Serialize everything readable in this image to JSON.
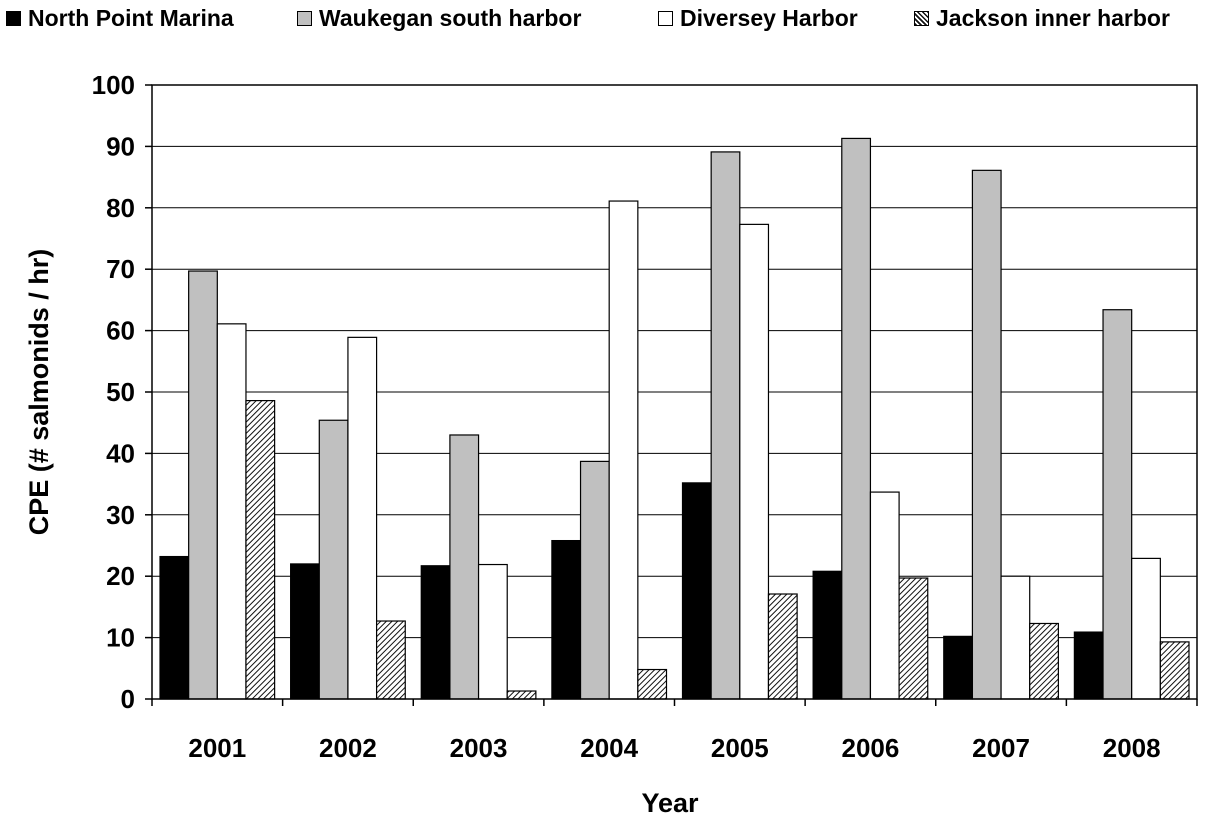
{
  "chart_data": {
    "type": "bar",
    "title": "",
    "xlabel": "Year",
    "ylabel": "CPE (# salmonids / hr)",
    "ylim": [
      0,
      100
    ],
    "ytick_step": 10,
    "grid": true,
    "legend_position": "top",
    "categories": [
      "2001",
      "2002",
      "2003",
      "2004",
      "2005",
      "2006",
      "2007",
      "2008"
    ],
    "series": [
      {
        "name": "North Point Marina",
        "color": "#000000",
        "pattern": "solid",
        "values": [
          23.2,
          22.0,
          21.7,
          25.8,
          35.2,
          20.8,
          10.2,
          10.9
        ]
      },
      {
        "name": "Waukegan south harbor",
        "color": "#c0c0c0",
        "pattern": "solid",
        "values": [
          69.7,
          45.4,
          43.0,
          38.7,
          89.1,
          91.3,
          86.1,
          63.4
        ]
      },
      {
        "name": "Diversey Harbor",
        "color": "#ffffff",
        "pattern": "solid",
        "values": [
          61.1,
          58.9,
          21.9,
          81.1,
          77.3,
          33.7,
          20.0,
          22.9
        ]
      },
      {
        "name": "Jackson inner harbor",
        "color": "#ffffff",
        "pattern": "diagonal-hatch",
        "values": [
          48.6,
          12.7,
          1.3,
          4.8,
          17.1,
          19.7,
          12.3,
          9.3
        ]
      }
    ]
  }
}
